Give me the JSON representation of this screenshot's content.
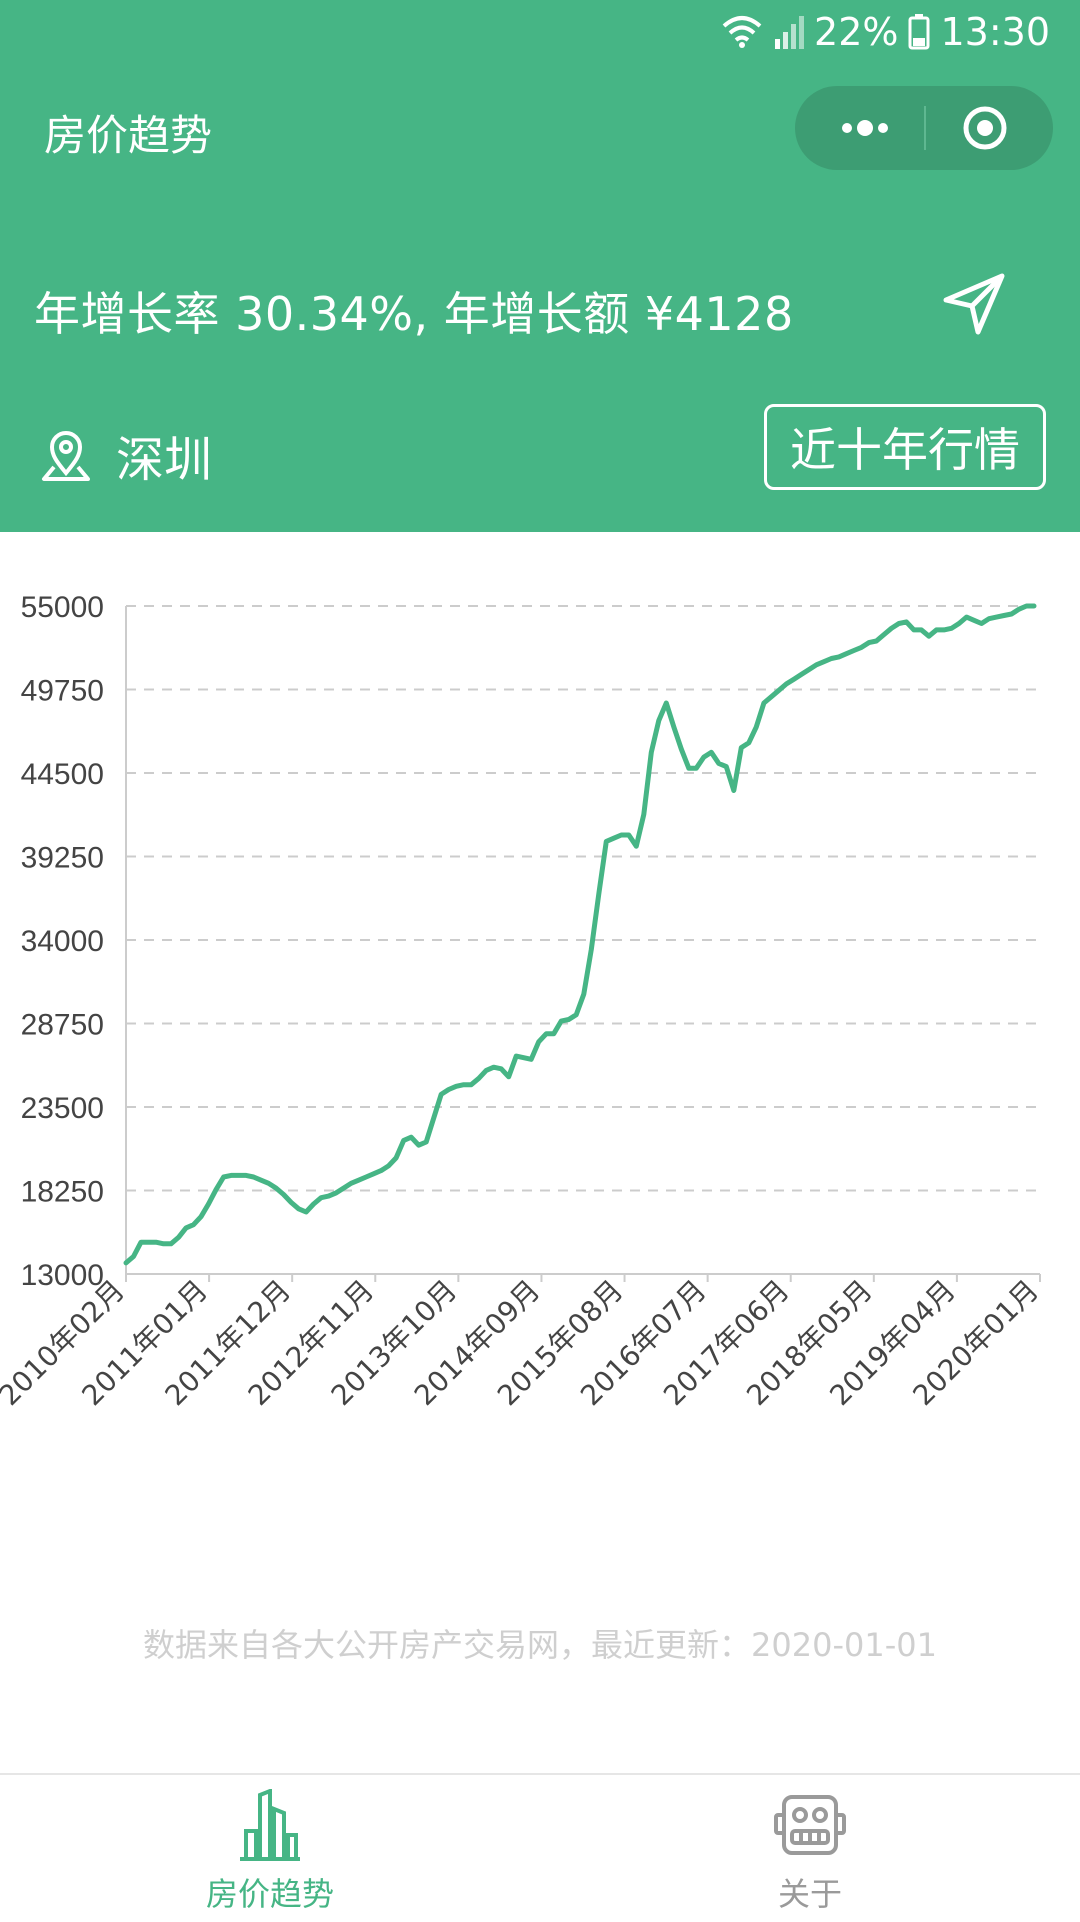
{
  "status": {
    "battery": "22%",
    "time": "13:30"
  },
  "header": {
    "title": "房价趋势",
    "growth_text": "年增长率 30.34%, 年增长额 ¥4128",
    "city": "深圳",
    "range_button": "近十年行情"
  },
  "chart_data": {
    "type": "line",
    "ylim": [
      13000,
      55000
    ],
    "yticks": [
      "55000",
      "49750",
      "44500",
      "39250",
      "34000",
      "28750",
      "23500",
      "18250",
      "13000"
    ],
    "xticks": [
      "2010年02月",
      "2011年01月",
      "2011年12月",
      "2012年11月",
      "2013年10月",
      "2014年09月",
      "2015年08月",
      "2016年07月",
      "2017年06月",
      "2018年05月",
      "2019年04月",
      "2020年01月"
    ],
    "grid": true,
    "line_color": "#46b585",
    "values": [
      13700,
      14100,
      15000,
      15000,
      15000,
      14900,
      14900,
      15300,
      15900,
      16100,
      16600,
      17400,
      18300,
      19100,
      19200,
      19200,
      19200,
      19100,
      18900,
      18700,
      18400,
      18000,
      17500,
      17100,
      16900,
      17400,
      17800,
      17900,
      18100,
      18400,
      18700,
      18900,
      19100,
      19300,
      19500,
      19800,
      20300,
      21400,
      21600,
      21100,
      21300,
      22800,
      24300,
      24600,
      24800,
      24900,
      24900,
      25300,
      25800,
      26000,
      25900,
      25400,
      26700,
      26600,
      26500,
      27600,
      28100,
      28100,
      28900,
      29000,
      29300,
      30600,
      33400,
      36900,
      40200,
      40400,
      40600,
      40600,
      39900,
      41900,
      45800,
      47800,
      48900,
      47400,
      46000,
      44800,
      44800,
      45500,
      45800,
      45100,
      44900,
      43400,
      46100,
      46400,
      47400,
      48900,
      49300,
      49700,
      50100,
      50400,
      50700,
      51000,
      51300,
      51500,
      51700,
      51800,
      52000,
      52200,
      52400,
      52700,
      52800,
      53200,
      53600,
      53900,
      54000,
      53500,
      53500,
      53100,
      53500,
      53500,
      53600,
      53900,
      54300,
      54100,
      53900,
      54200,
      54300,
      54400,
      54500,
      54800,
      55000,
      55000
    ]
  },
  "footnote": "数据来自各大公开房产交易网，最近更新：2020-01-01",
  "tabs": [
    {
      "label": "房价趋势",
      "active": true
    },
    {
      "label": "关于",
      "active": false
    }
  ]
}
